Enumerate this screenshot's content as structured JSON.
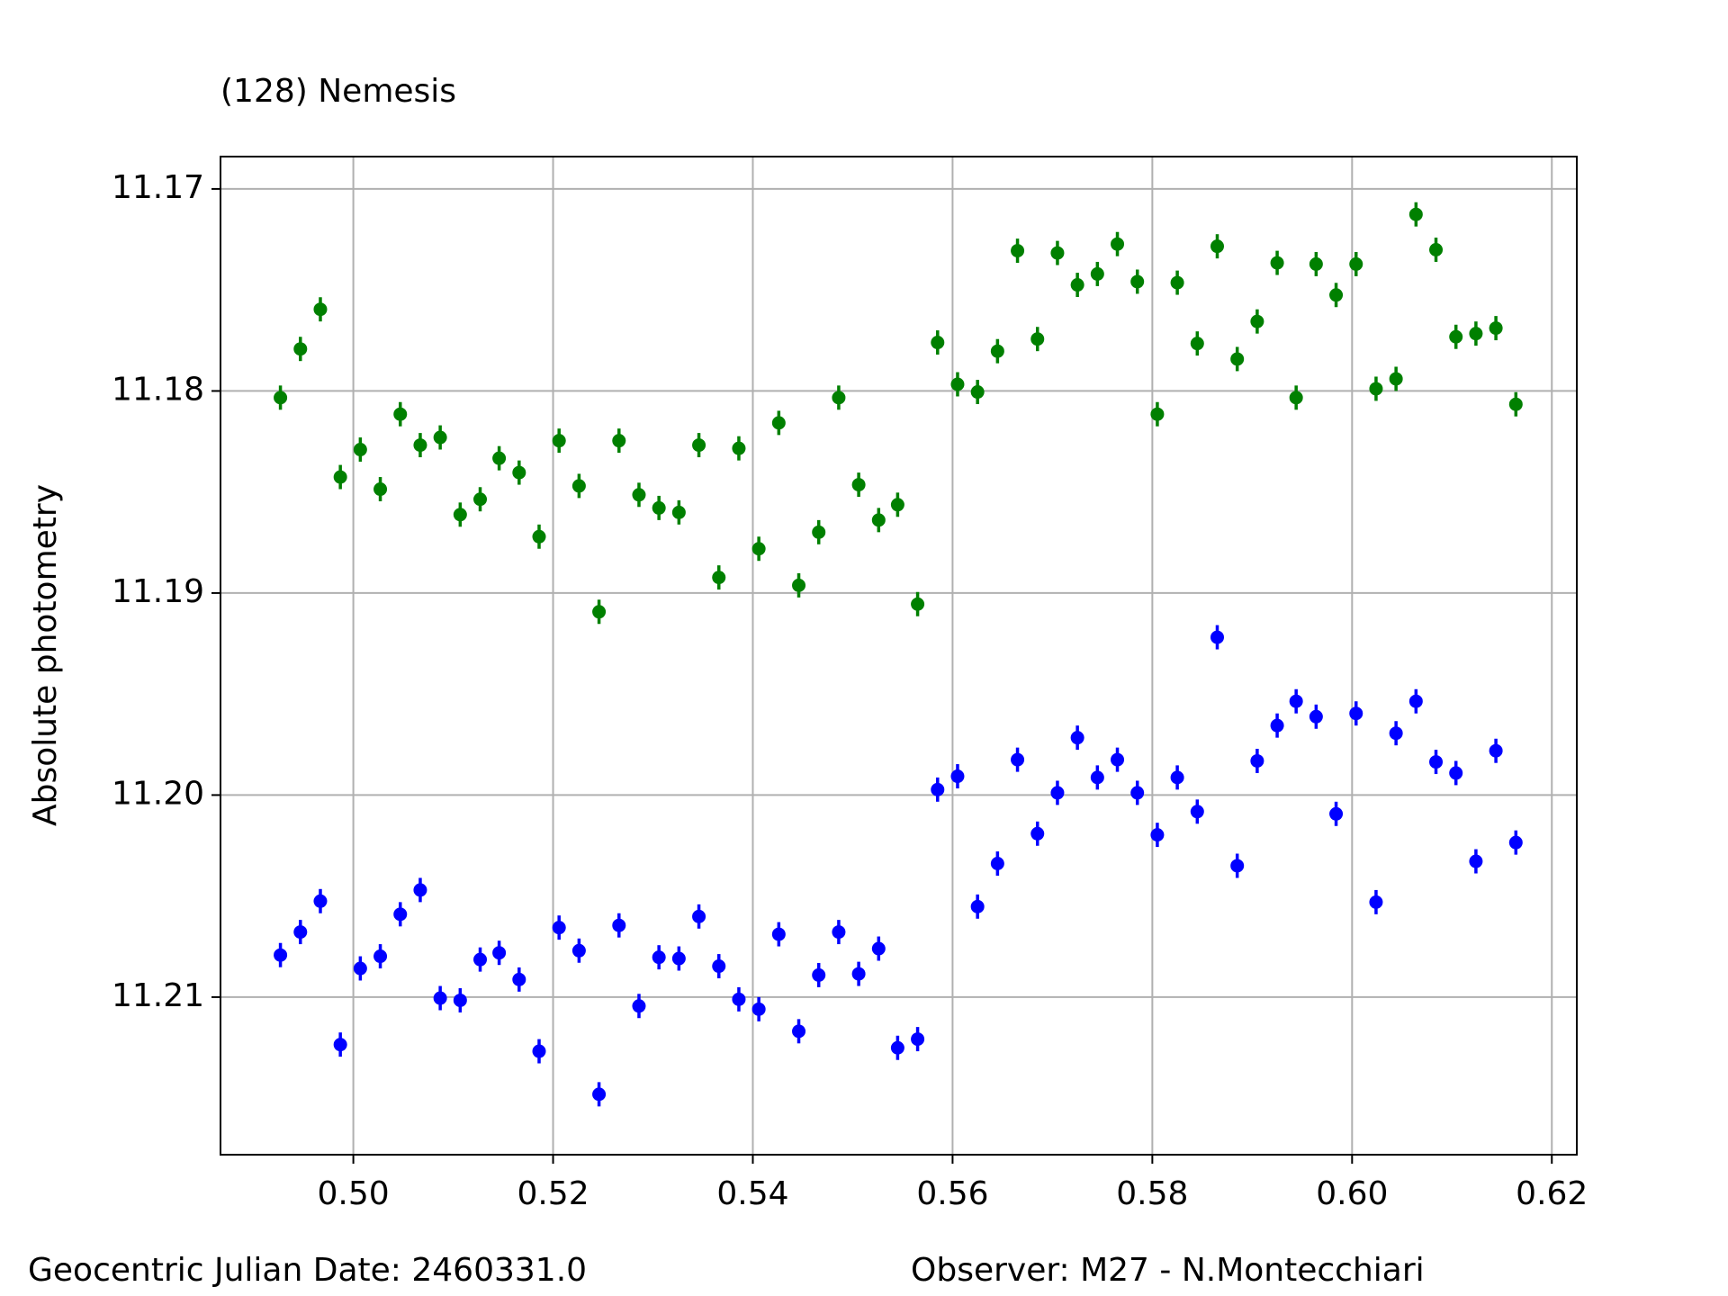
{
  "chart_data": {
    "type": "errorbar",
    "title": "(128) Nemesis",
    "title_color": "#ff0000",
    "ylabel": "Absolute photometry",
    "footer_left": "Geocentric Julian Date: 2460331.0",
    "footer_right": "Observer: M27 - N.Montecchiari",
    "x": [
      0.4927,
      0.4947,
      0.4967,
      0.4987,
      0.5007,
      0.5027,
      0.5047,
      0.5067,
      0.5087,
      0.5107,
      0.5127,
      0.5146,
      0.5166,
      0.5186,
      0.5206,
      0.5226,
      0.5246,
      0.5266,
      0.5286,
      0.5306,
      0.5326,
      0.5346,
      0.5366,
      0.5386,
      0.5406,
      0.5426,
      0.5446,
      0.5466,
      0.5486,
      0.5506,
      0.5526,
      0.5545,
      0.5565,
      0.5585,
      0.5605,
      0.5625,
      0.5645,
      0.5665,
      0.5685,
      0.5705,
      0.5725,
      0.5745,
      0.5765,
      0.5785,
      0.5805,
      0.5825,
      0.5845,
      0.5865,
      0.5885,
      0.5905,
      0.5925,
      0.5944,
      0.5964,
      0.5984,
      0.6004,
      0.6024,
      0.6044,
      0.6064,
      0.6084,
      0.6104,
      0.6124,
      0.6144,
      0.6164
    ],
    "series": [
      {
        "color": "#008000",
        "error": 0.0006,
        "values": [
          11.18033,
          11.17792,
          11.17596,
          11.18426,
          11.1829,
          11.18486,
          11.18115,
          11.18268,
          11.1823,
          11.18612,
          11.18536,
          11.18333,
          11.18404,
          11.18721,
          11.18246,
          11.1847,
          11.19093,
          11.18246,
          11.18514,
          11.18579,
          11.18601,
          11.18268,
          11.18923,
          11.18284,
          11.18781,
          11.18158,
          11.18962,
          11.18699,
          11.18033,
          11.18464,
          11.18639,
          11.18563,
          11.19055,
          11.1776,
          11.17967,
          11.18005,
          11.17803,
          11.17306,
          11.17743,
          11.17317,
          11.17475,
          11.17421,
          11.17273,
          11.17459,
          11.18115,
          11.17464,
          11.17765,
          11.17284,
          11.17842,
          11.17656,
          11.17366,
          11.18033,
          11.17372,
          11.17525,
          11.17372,
          11.17989,
          11.1794,
          11.17126,
          11.17301,
          11.17732,
          11.17716,
          11.17689,
          11.18066
        ]
      },
      {
        "color": "#0000ff",
        "error": 0.0006,
        "values": [
          11.20792,
          11.20678,
          11.20525,
          11.21235,
          11.20858,
          11.20798,
          11.2059,
          11.2047,
          11.21005,
          11.21016,
          11.20814,
          11.20781,
          11.20913,
          11.21268,
          11.20656,
          11.2077,
          11.21481,
          11.20645,
          11.21044,
          11.20803,
          11.20809,
          11.20601,
          11.20847,
          11.21011,
          11.2106,
          11.20689,
          11.21169,
          11.20891,
          11.20678,
          11.20885,
          11.2076,
          11.21251,
          11.21208,
          11.19973,
          11.19907,
          11.20552,
          11.20339,
          11.19825,
          11.20191,
          11.19989,
          11.19716,
          11.19913,
          11.19825,
          11.19989,
          11.20197,
          11.19913,
          11.20082,
          11.19219,
          11.2035,
          11.19831,
          11.19656,
          11.19536,
          11.19612,
          11.20093,
          11.19596,
          11.2053,
          11.19694,
          11.19536,
          11.19836,
          11.19891,
          11.20328,
          11.19781,
          11.20235
        ]
      }
    ],
    "xlim": [
      0.4867,
      0.6225
    ],
    "ylim": [
      11.2178,
      11.1684
    ],
    "xticks": [
      {
        "value": 0.5,
        "label": "0.50"
      },
      {
        "value": 0.52,
        "label": "0.52"
      },
      {
        "value": 0.54,
        "label": "0.54"
      },
      {
        "value": 0.56,
        "label": "0.56"
      },
      {
        "value": 0.58,
        "label": "0.58"
      },
      {
        "value": 0.6,
        "label": "0.60"
      },
      {
        "value": 0.62,
        "label": "0.62"
      }
    ],
    "yticks": [
      11.17,
      11.18,
      11.19,
      {
        "value": 11.2,
        "label": "11.20"
      },
      11.21
    ],
    "grid": true
  }
}
